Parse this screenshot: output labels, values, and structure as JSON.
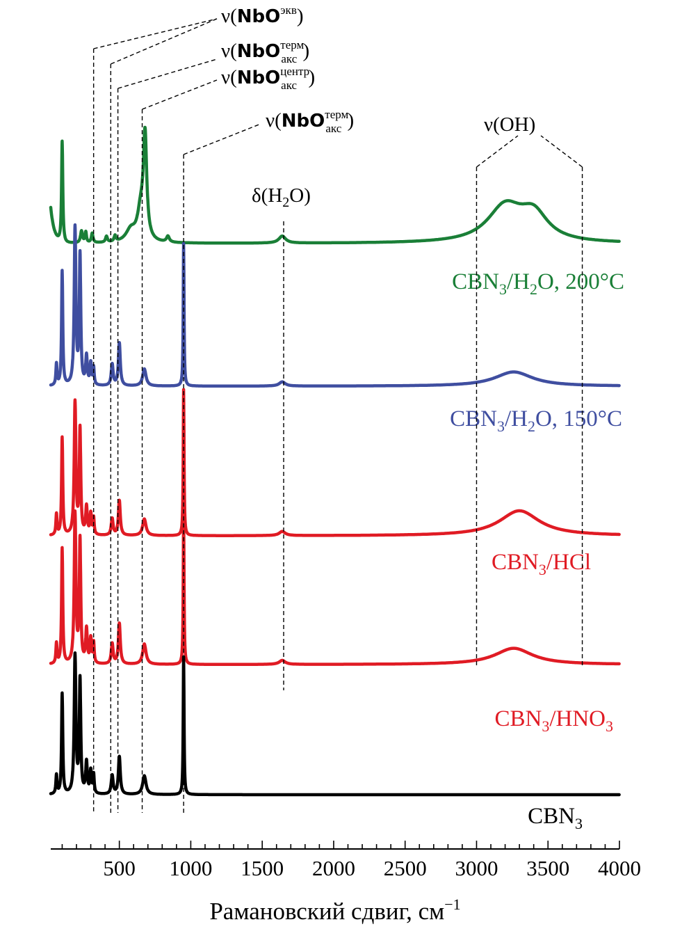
{
  "chart_data": {
    "type": "line",
    "xlabel": "Рамановский сдвиг, см",
    "xlabel_sup": "−1",
    "xlim": [
      20,
      4000
    ],
    "x_ticks": [
      {
        "v": 500,
        "label": "500"
      },
      {
        "v": 1000,
        "label": "1000"
      },
      {
        "v": 1500,
        "label": "1500"
      },
      {
        "v": 2000,
        "label": "2000"
      },
      {
        "v": 2500,
        "label": "2500"
      },
      {
        "v": 3000,
        "label": "3000"
      },
      {
        "v": 3500,
        "label": "3500"
      },
      {
        "v": 4000,
        "label": "4000"
      }
    ],
    "minor_tick_step": 100,
    "stacked_offset": true,
    "series": [
      {
        "name": "CBN3/H2O, 200°C",
        "label_main": "CBN",
        "label_sub1": "3",
        "label_mid": "/H",
        "label_sub2": "2",
        "label_end": "O, 200°C",
        "color": "#1a7f37",
        "baseline": 0.0,
        "scale": 1.0,
        "peaks": [
          [
            100,
            0.85,
            5
          ],
          [
            235,
            0.1,
            8
          ],
          [
            265,
            0.09,
            6
          ],
          [
            310,
            0.08,
            7
          ],
          [
            410,
            0.05,
            8
          ],
          [
            470,
            0.05,
            8
          ],
          [
            580,
            0.1,
            40
          ],
          [
            650,
            0.25,
            28
          ],
          [
            680,
            0.85,
            14
          ],
          [
            840,
            0.05,
            12
          ],
          [
            1640,
            0.06,
            28
          ],
          [
            3200,
            0.3,
            150
          ],
          [
            3400,
            0.22,
            120
          ]
        ],
        "tail": 0.3
      },
      {
        "name": "CBN3/H2O, 150°C",
        "label_main": "CBN",
        "label_sub1": "3",
        "label_mid": "/H",
        "label_sub2": "2",
        "label_end": "O, 150°C",
        "color": "#3f4ea0",
        "baseline": 0.0,
        "scale": 1.0,
        "peaks": [
          [
            60,
            0.15,
            5
          ],
          [
            100,
            0.8,
            5
          ],
          [
            190,
            1.1,
            7
          ],
          [
            225,
            0.9,
            6
          ],
          [
            270,
            0.2,
            7
          ],
          [
            300,
            0.15,
            6
          ],
          [
            320,
            0.12,
            5
          ],
          [
            450,
            0.15,
            8
          ],
          [
            500,
            0.3,
            8
          ],
          [
            675,
            0.12,
            14
          ],
          [
            950,
            1.0,
            3.5
          ],
          [
            1640,
            0.03,
            25
          ],
          [
            3260,
            0.1,
            160
          ]
        ],
        "tail": 0.0
      },
      {
        "name": "CBN3/HCl",
        "label_main": "CBN",
        "label_sub1": "3",
        "label_end": "/HCl",
        "color": "#e01b24",
        "baseline": 0.0,
        "scale": 1.0,
        "peaks": [
          [
            60,
            0.15,
            5
          ],
          [
            100,
            0.7,
            5
          ],
          [
            190,
            0.95,
            7
          ],
          [
            225,
            0.75,
            6
          ],
          [
            270,
            0.2,
            7
          ],
          [
            300,
            0.15,
            6
          ],
          [
            320,
            0.12,
            5
          ],
          [
            450,
            0.12,
            8
          ],
          [
            500,
            0.25,
            8
          ],
          [
            675,
            0.12,
            14
          ],
          [
            950,
            1.05,
            3.5
          ],
          [
            1640,
            0.03,
            25
          ],
          [
            3300,
            0.18,
            170
          ]
        ],
        "tail": 0.0
      },
      {
        "name": "CBN3/HNO3",
        "label_main": "CBN",
        "label_sub1": "3",
        "label_mid": "/HNO",
        "label_sub2": "3",
        "label_end": "",
        "color": "#e01b24",
        "baseline": 0.0,
        "scale": 1.0,
        "peaks": [
          [
            60,
            0.15,
            5
          ],
          [
            100,
            0.85,
            5
          ],
          [
            190,
            1.1,
            7
          ],
          [
            225,
            0.9,
            6
          ],
          [
            270,
            0.25,
            7
          ],
          [
            300,
            0.18,
            6
          ],
          [
            320,
            0.15,
            5
          ],
          [
            450,
            0.15,
            8
          ],
          [
            500,
            0.3,
            8
          ],
          [
            675,
            0.15,
            14
          ],
          [
            950,
            1.1,
            3.5
          ],
          [
            1640,
            0.03,
            25
          ],
          [
            3260,
            0.12,
            160
          ]
        ],
        "tail": 0.0
      },
      {
        "name": "CBN3",
        "label_main": "CBN",
        "label_sub1": "3",
        "label_end": "",
        "color": "#000000",
        "baseline": 0.0,
        "scale": 1.0,
        "peaks": [
          [
            60,
            0.15,
            5
          ],
          [
            100,
            0.8,
            5
          ],
          [
            190,
            1.1,
            7
          ],
          [
            225,
            0.9,
            6
          ],
          [
            270,
            0.25,
            7
          ],
          [
            300,
            0.18,
            6
          ],
          [
            320,
            0.15,
            5
          ],
          [
            450,
            0.15,
            8
          ],
          [
            500,
            0.3,
            8
          ],
          [
            675,
            0.15,
            14
          ],
          [
            950,
            1.1,
            3.5
          ]
        ],
        "tail": 0.0
      }
    ],
    "annotations": [
      {
        "id": "nbo-ekv",
        "x": 300,
        "prefix": "ν(",
        "bold": "NbO",
        "sup": "экв",
        "suffix": ")"
      },
      {
        "id": "nbo-aks-term-1",
        "x": 440,
        "prefix": "ν(",
        "bold": "NbO",
        "sup": "терм",
        "sub": "акс",
        "suffix": ")"
      },
      {
        "id": "nbo-aks-centr",
        "x": 490,
        "prefix": "ν(",
        "bold": "NbO",
        "sup": "центр",
        "sub": "акс",
        "suffix": ")"
      },
      {
        "id": "nbo-aks-term-2",
        "x": 960,
        "prefix": "ν(",
        "bold": "NbO",
        "sup": "терм",
        "sub": "акс",
        "suffix": ")"
      },
      {
        "id": "h2o-bend",
        "x": 1640,
        "text": "δ(H",
        "sub": "2",
        "suffix": "O)"
      },
      {
        "id": "oh-stretch",
        "x_range": [
          3000,
          3740
        ],
        "text": "ν(OH)"
      }
    ],
    "guide_lines_x": [
      320,
      440,
      490,
      660,
      950,
      1650,
      3000,
      3740
    ],
    "grid": false,
    "legend": "none"
  }
}
